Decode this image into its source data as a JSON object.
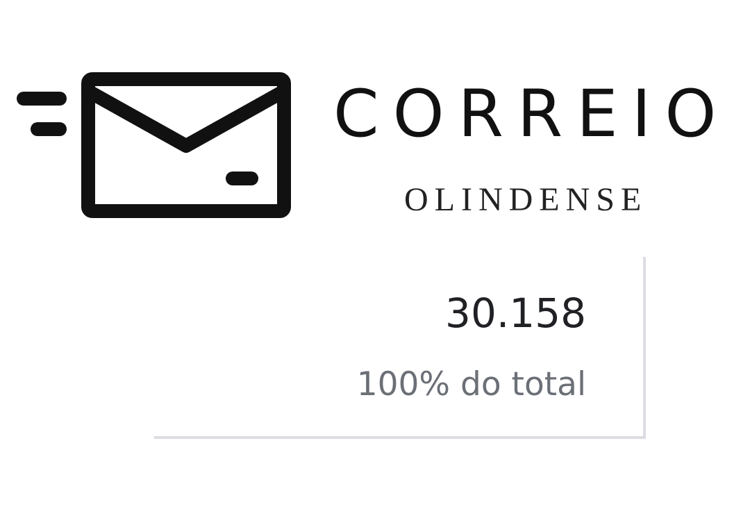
{
  "logo": {
    "icon": "envelope-icon",
    "name": "CORREIO",
    "subtitle": "OLINDENSE"
  },
  "stat": {
    "value": "30.158",
    "caption": "100% do total"
  },
  "colors": {
    "logo": "#111111",
    "value": "#202124",
    "caption": "#6b6f76",
    "card_border": "#dcdde2"
  }
}
